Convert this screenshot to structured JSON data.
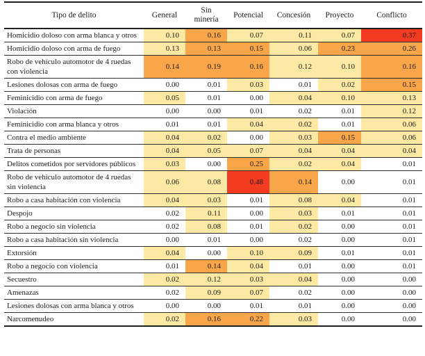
{
  "chart_data": {
    "type": "heatmap",
    "title": "",
    "row_header": "Tipo de delito",
    "columns": [
      "General",
      "Sin minería",
      "Potencial",
      "Concesión",
      "Proyecto",
      "Conflicto"
    ],
    "palette": {
      "w": "#FFFFFF",
      "y": "#FCE9A4",
      "o": "#F9A64B",
      "r": "#F23B21"
    },
    "palette_meaning": {
      "w": "lowest",
      "y": "low-mid",
      "o": "high",
      "r": "highest"
    },
    "rows": [
      {
        "label": "Homicidio doloso con arma blanca y otros",
        "values": [
          0.1,
          0.16,
          0.07,
          0.11,
          0.07,
          0.37
        ],
        "cell_colors": [
          "y",
          "o",
          "y",
          "y",
          "y",
          "r"
        ]
      },
      {
        "label": "Homicidio doloso con arma de fuego",
        "values": [
          0.13,
          0.13,
          0.15,
          0.06,
          0.23,
          0.26
        ],
        "cell_colors": [
          "y",
          "o",
          "o",
          "y",
          "o",
          "o"
        ]
      },
      {
        "label": "Robo de vehículo automotor de 4 ruedas con violencia",
        "values": [
          0.14,
          0.19,
          0.16,
          0.12,
          0.1,
          0.16
        ],
        "cell_colors": [
          "o",
          "o",
          "o",
          "y",
          "y",
          "o"
        ]
      },
      {
        "label": "Lesiones dolosas con arma de fuego",
        "values": [
          0.0,
          0.01,
          0.03,
          0.01,
          0.02,
          0.15
        ],
        "cell_colors": [
          "w",
          "w",
          "y",
          "w",
          "y",
          "o"
        ]
      },
      {
        "label": "Feminicidio con arma de fuego",
        "values": [
          0.05,
          0.01,
          0.0,
          0.04,
          0.1,
          0.13
        ],
        "cell_colors": [
          "y",
          "w",
          "w",
          "y",
          "y",
          "y"
        ]
      },
      {
        "label": "Violación",
        "values": [
          0.0,
          0.0,
          0.01,
          0.02,
          0.01,
          0.12
        ],
        "cell_colors": [
          "w",
          "w",
          "w",
          "w",
          "w",
          "y"
        ]
      },
      {
        "label": "Feminicidio con arma blanca y otros",
        "values": [
          0.01,
          0.01,
          0.04,
          0.02,
          0.01,
          0.06
        ],
        "cell_colors": [
          "w",
          "w",
          "y",
          "y",
          "w",
          "y"
        ]
      },
      {
        "label": "Contra el medio ambiente",
        "values": [
          0.04,
          0.02,
          0.0,
          0.03,
          0.15,
          0.06
        ],
        "cell_colors": [
          "y",
          "y",
          "w",
          "y",
          "o",
          "y"
        ]
      },
      {
        "label": "Trata de personas",
        "values": [
          0.04,
          0.05,
          0.07,
          0.04,
          0.04,
          0.04
        ],
        "cell_colors": [
          "y",
          "y",
          "y",
          "y",
          "y",
          "y"
        ]
      },
      {
        "label": "Delitos cometidos por servidores públicos",
        "values": [
          0.03,
          0.0,
          0.25,
          0.02,
          0.04,
          0.01
        ],
        "cell_colors": [
          "y",
          "w",
          "o",
          "y",
          "y",
          "w"
        ]
      },
      {
        "label": "Robo de vehículo automotor de 4 ruedas sin violencia",
        "values": [
          0.06,
          0.08,
          0.48,
          0.14,
          0.0,
          0.01
        ],
        "cell_colors": [
          "y",
          "y",
          "r",
          "o",
          "w",
          "w"
        ]
      },
      {
        "label": "Robo a casa habitación con violencia",
        "values": [
          0.04,
          0.03,
          0.01,
          0.08,
          0.04,
          0.01
        ],
        "cell_colors": [
          "y",
          "y",
          "w",
          "y",
          "y",
          "w"
        ]
      },
      {
        "label": "Despojo",
        "values": [
          0.02,
          0.11,
          0.0,
          0.03,
          0.01,
          0.01
        ],
        "cell_colors": [
          "w",
          "y",
          "w",
          "y",
          "w",
          "w"
        ]
      },
      {
        "label": "Robo a negocio sin violencia",
        "values": [
          0.02,
          0.08,
          0.01,
          0.02,
          0.0,
          0.01
        ],
        "cell_colors": [
          "w",
          "y",
          "w",
          "y",
          "w",
          "w"
        ]
      },
      {
        "label": "Robo a casa habitación sin violencia",
        "values": [
          0.0,
          0.01,
          0.0,
          0.02,
          0.0,
          0.01
        ],
        "cell_colors": [
          "w",
          "w",
          "w",
          "w",
          "w",
          "w"
        ]
      },
      {
        "label": "Extorsión",
        "values": [
          0.04,
          0.0,
          0.1,
          0.09,
          0.01,
          0.01
        ],
        "cell_colors": [
          "y",
          "w",
          "y",
          "y",
          "w",
          "w"
        ]
      },
      {
        "label": "Robo a negocio con violencia",
        "values": [
          0.01,
          0.14,
          0.04,
          0.01,
          0.0,
          0.01
        ],
        "cell_colors": [
          "w",
          "o",
          "y",
          "w",
          "w",
          "w"
        ]
      },
      {
        "label": "Secuestro",
        "values": [
          0.02,
          0.12,
          0.03,
          0.04,
          0.0,
          0.0
        ],
        "cell_colors": [
          "y",
          "y",
          "y",
          "y",
          "w",
          "w"
        ]
      },
      {
        "label": "Amenazas",
        "values": [
          0.02,
          0.09,
          0.07,
          0.02,
          0.0,
          0.0
        ],
        "cell_colors": [
          "w",
          "y",
          "y",
          "w",
          "w",
          "w"
        ]
      },
      {
        "label": "Lesiones dolosas con arma blanca y otros",
        "values": [
          0.0,
          0.0,
          0.01,
          0.01,
          0.0,
          0.0
        ],
        "cell_colors": [
          "w",
          "w",
          "w",
          "w",
          "w",
          "w"
        ]
      },
      {
        "label": "Narcomenudeo",
        "values": [
          0.02,
          0.16,
          0.22,
          0.03,
          0.0,
          0.0
        ],
        "cell_colors": [
          "y",
          "o",
          "o",
          "y",
          "w",
          "w"
        ]
      }
    ]
  }
}
